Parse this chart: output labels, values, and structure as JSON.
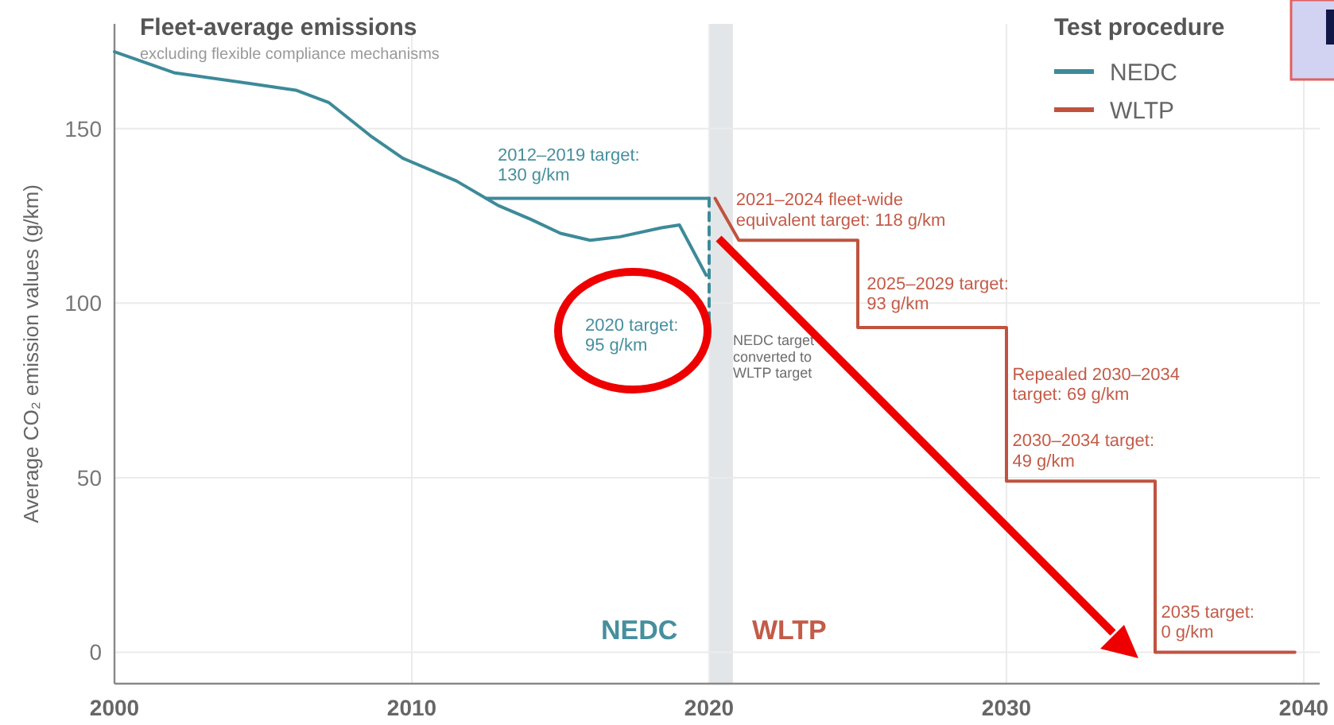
{
  "chart_data": {
    "type": "line",
    "title": "Fleet-average emissions",
    "subtitle": "excluding flexible compliance mechanisms",
    "ylabel": "Average CO₂ emission values (g/km)",
    "legend_title": "Test procedure",
    "legend": "top right",
    "grid": true,
    "xlim": [
      2000,
      2040
    ],
    "xticks": [
      2000,
      2010,
      2020,
      2030,
      2040
    ],
    "ylim": [
      -9,
      180
    ],
    "yticks": [
      0,
      50,
      100,
      150
    ],
    "series": [
      {
        "name": "NEDC",
        "color": "#3d8a99",
        "x": [
          2000,
          2002,
          2004.5,
          2006.1,
          2007.2,
          2008.6,
          2009.7,
          2011.5,
          2012.9,
          2014,
          2015,
          2016,
          2017,
          2018.4,
          2019,
          2019.9
        ],
        "values": [
          172,
          166,
          163,
          161,
          157.5,
          148,
          141.5,
          135,
          128,
          124,
          120,
          118,
          119,
          121.6,
          122.4,
          108
        ]
      },
      {
        "name": "WLTP",
        "color": "#c0533f",
        "x": [
          2020.2,
          2021,
          2025,
          2025,
          2030,
          2030,
          2035,
          2035,
          2039.7
        ],
        "values": [
          130,
          118,
          118,
          93,
          93,
          49,
          49,
          0,
          0
        ]
      },
      {
        "color": "#3d8a99",
        "x": [
          2012.5,
          2020
        ],
        "values": [
          130,
          130
        ]
      },
      {
        "color": "#3d8a99",
        "line_style": "dashed",
        "x": [
          2020,
          2020
        ],
        "values": [
          130,
          95
        ]
      }
    ],
    "bands": [
      {
        "axis": "x",
        "from": 2020,
        "to": 2020.8,
        "color": "#e3e6e8"
      }
    ],
    "annotations": [
      "2012–2019 target:\n130 g/km",
      "2020 target:\n95 g/km",
      {
        "text": "2021–2024 fleet-wide\nequivalent target: 118 g/km",
        "x": 2020.9,
        "y": 128
      },
      {
        "text": "2025–2029 target:\n93 g/km",
        "x": 2025.3,
        "y": 104
      },
      {
        "text": "Repealed 2030–2034\ntarget: 69 g/km",
        "x": 2030.2,
        "y": 78
      },
      {
        "text": "2030–2034 target:\n49 g/km",
        "x": 2030.2,
        "y": 59
      },
      {
        "text": "2035 target:\n0 g/km",
        "x": 2035.2,
        "y": 10
      },
      {
        "text": "NEDC target\nconverted to\nWLTP target",
        "x": 2020.8,
        "y": 88
      },
      "NEDC",
      "WLTP"
    ]
  }
}
